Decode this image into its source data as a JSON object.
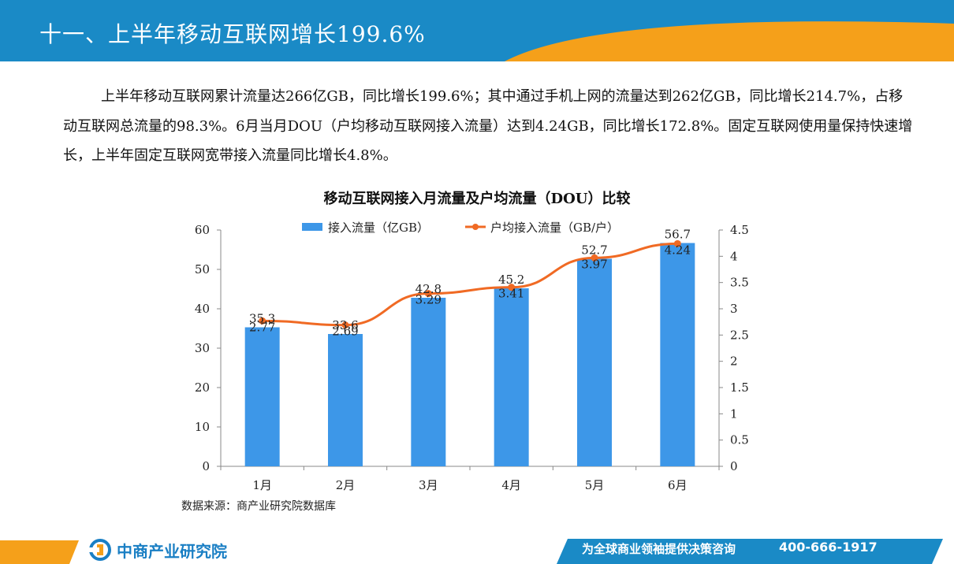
{
  "header": {
    "title": "十一、上半年移动互联网增长199.6%"
  },
  "intro": {
    "text": "上半年移动互联网累计流量达266亿GB，同比增长199.6%；其中通过手机上网的流量达到262亿GB，同比增长214.7%，占移动互联网总流量的98.3%。6月当月DOU（户均移动互联网接入流量）达到4.24GB，同比增长172.8%。固定互联网使用量保持快速增长，上半年固定互联网宽带接入流量同比增长4.8%。"
  },
  "colors": {
    "header_blue": "#1a8ac6",
    "header_orange": "#f5a01a",
    "bar": "#3d97e8",
    "line": "#f06a24"
  },
  "chart_data": {
    "type": "bar",
    "title": "移动互联网接入月流量及户均流量（DOU）比较",
    "categories": [
      "1月",
      "2月",
      "3月",
      "4月",
      "5月",
      "6月"
    ],
    "series": [
      {
        "name": "接入流量（亿GB）",
        "type": "bar",
        "axis": "left",
        "values": [
          35.3,
          33.6,
          42.8,
          45.2,
          52.7,
          56.7
        ],
        "labels": [
          "35.3",
          "33.6",
          "42.8",
          "45.2",
          "52.7",
          "56.7"
        ]
      },
      {
        "name": "户均接入流量（GB/户）",
        "type": "line",
        "axis": "right",
        "values": [
          2.77,
          2.69,
          3.29,
          3.41,
          3.97,
          4.24
        ],
        "labels": [
          "2.77",
          "2.69",
          "3.29",
          "3.41",
          "3.97",
          "4.24"
        ]
      }
    ],
    "y_left": {
      "min": 0,
      "max": 60,
      "ticks": [
        "0",
        "10",
        "20",
        "30",
        "40",
        "50",
        "60"
      ]
    },
    "y_right": {
      "min": 0,
      "max": 4.5,
      "ticks": [
        "0",
        "0.5",
        "1",
        "1.5",
        "2",
        "2.5",
        "3",
        "3.5",
        "4",
        "4.5"
      ]
    },
    "legend_position": "top",
    "grid": false
  },
  "source": {
    "text": "数据来源：商产业研究院数据库"
  },
  "footer": {
    "logo_text": "中商产业研究院",
    "slogan": "为全球商业领袖提供决策咨询",
    "phone": "400-666-1917"
  }
}
